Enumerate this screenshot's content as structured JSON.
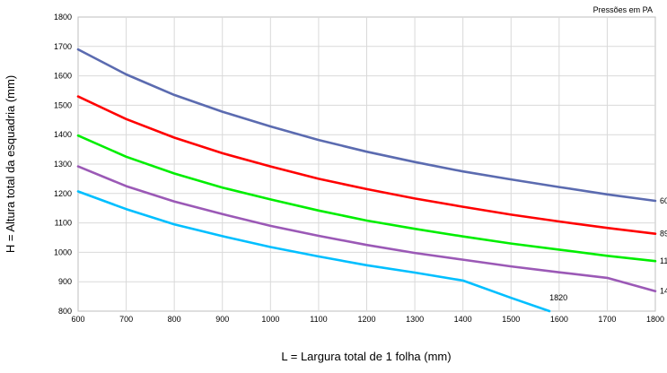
{
  "chart_data": {
    "type": "line",
    "title": "",
    "note": "Pressões em PA",
    "xlabel": "L = Largura total de 1 folha (mm)",
    "ylabel": "H = Altura total da esquadria (mm)",
    "xlim": [
      600,
      1800
    ],
    "ylim": [
      800,
      1800
    ],
    "x_ticks": [
      600,
      700,
      800,
      900,
      1000,
      1100,
      1200,
      1300,
      1400,
      1500,
      1600,
      1700,
      1800
    ],
    "y_ticks": [
      800,
      900,
      1000,
      1100,
      1200,
      1300,
      1400,
      1500,
      1600,
      1700,
      1800
    ],
    "grid": true,
    "x": [
      600,
      700,
      800,
      900,
      1000,
      1100,
      1200,
      1300,
      1400,
      1500,
      1600,
      1700,
      1800
    ],
    "series": [
      {
        "name": "60",
        "color": "#5b6bb0",
        "end_label": "60",
        "values": [
          1690,
          1605,
          1535,
          1478,
          1428,
          1382,
          1342,
          1307,
          1275,
          1248,
          1222,
          1197,
          1175
        ]
      },
      {
        "name": "89",
        "color": "#ff0000",
        "end_label": "89",
        "values": [
          1530,
          1453,
          1390,
          1337,
          1292,
          1250,
          1215,
          1183,
          1155,
          1128,
          1105,
          1083,
          1063
        ]
      },
      {
        "name": "11",
        "color": "#00ee00",
        "end_label": "11",
        "values": [
          1397,
          1325,
          1268,
          1220,
          1180,
          1142,
          1108,
          1080,
          1054,
          1030,
          1009,
          988,
          970
        ]
      },
      {
        "name": "14",
        "color": "#9b59b6",
        "end_label": "14",
        "values": [
          1292,
          1225,
          1173,
          1130,
          1090,
          1056,
          1025,
          998,
          975,
          952,
          932,
          913,
          868
        ]
      },
      {
        "name": "1820",
        "color": "#00bfff",
        "end_label": "1820",
        "x": [
          600,
          700,
          800,
          900,
          1000,
          1100,
          1200,
          1300,
          1400,
          1500,
          1580
        ],
        "values": [
          1207,
          1147,
          1095,
          1055,
          1018,
          986,
          956,
          931,
          904,
          845,
          800
        ]
      }
    ]
  }
}
